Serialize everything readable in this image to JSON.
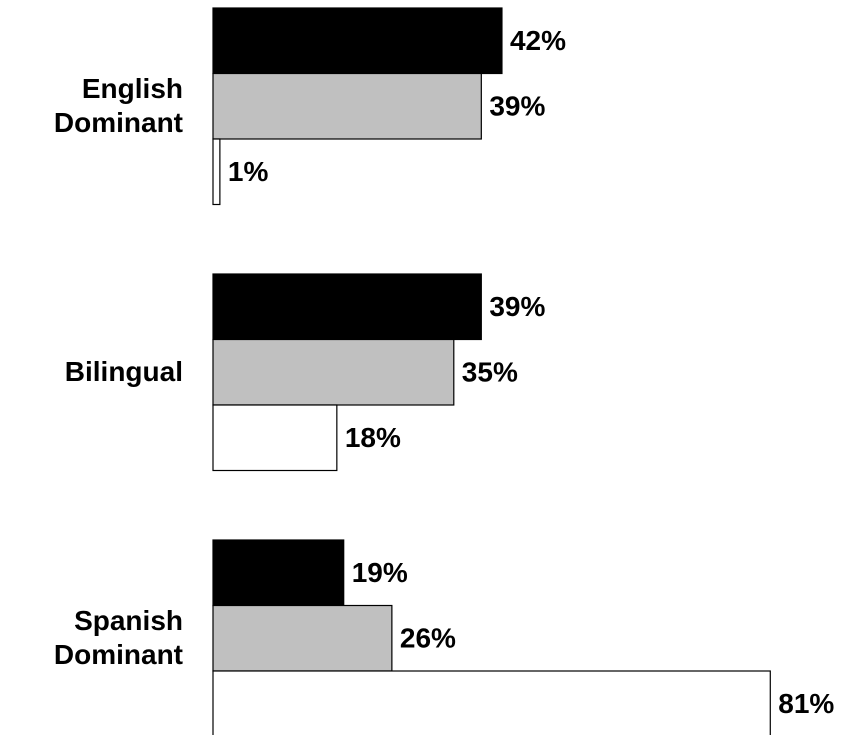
{
  "chart_data": {
    "type": "bar",
    "orientation": "horizontal",
    "categories": [
      "English Dominant",
      "Bilingual",
      "Spanish Dominant"
    ],
    "series": [
      {
        "color": "#000000",
        "values": [
          42,
          39,
          19
        ],
        "value_labels": [
          "42%",
          "39%",
          "19%"
        ]
      },
      {
        "color": "#c0c0c0",
        "values": [
          39,
          35,
          26
        ],
        "value_labels": [
          "39%",
          "35%",
          "26%"
        ]
      },
      {
        "color": "#ffffff",
        "values": [
          1,
          18,
          81
        ],
        "value_labels": [
          "1%",
          "18%",
          "81%"
        ]
      }
    ]
  }
}
